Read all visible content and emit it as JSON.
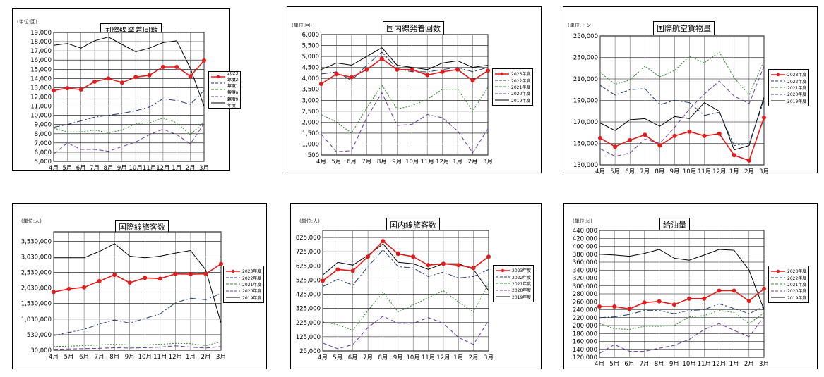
{
  "months": [
    "4月",
    "5月",
    "6月",
    "7月",
    "8月",
    "9月",
    "10月",
    "11月",
    "12月",
    "1月",
    "2月",
    "3月"
  ],
  "legend_labels": [
    "2023年度",
    "2022年度",
    "2021年度",
    "2020年度",
    "2019年度"
  ],
  "series_styles": [
    {
      "name": "2023年度",
      "color": "#e31b1b",
      "dash": "",
      "marker": true,
      "width": 1.6
    },
    {
      "name": "2022年度",
      "color": "#1f3a6b",
      "dash": "9,3,2,3",
      "marker": false,
      "width": 1
    },
    {
      "name": "2021年度",
      "color": "#2e8b2e",
      "dash": "2,2",
      "marker": false,
      "width": 1
    },
    {
      "name": "2020年度",
      "color": "#6a3a9a",
      "dash": "6,3",
      "marker": false,
      "width": 1
    },
    {
      "name": "2019年度",
      "color": "#000000",
      "dash": "",
      "marker": false,
      "width": 1
    }
  ],
  "chart_data": [
    {
      "type": "line",
      "title": "国際線発着回数",
      "unit": "(単位:回)",
      "ylim": [
        5000,
        19000
      ],
      "yticks": [
        5000,
        6000,
        7000,
        8000,
        9000,
        10000,
        11000,
        12000,
        13000,
        14000,
        15000,
        16000,
        17000,
        18000,
        19000
      ],
      "ytick_labels": [
        "5,000",
        "6,000",
        "7,000",
        "8,000",
        "9,000",
        "10,000",
        "11,000",
        "12,000",
        "13,000",
        "14,000",
        "15,000",
        "16,000",
        "17,000",
        "18,000",
        "19,000"
      ],
      "categories": [
        "4月",
        "5月",
        "6月",
        "7月",
        "8月",
        "9月",
        "10月",
        "11月",
        "12月",
        "1月",
        "2月",
        "3月"
      ],
      "series": [
        {
          "name": "2023年度",
          "values": [
            12700,
            12950,
            12800,
            13650,
            14000,
            13550,
            14150,
            14350,
            15250,
            15250,
            14250,
            15950
          ]
        },
        {
          "name": "2022年度",
          "values": [
            8700,
            9000,
            9400,
            9800,
            10000,
            10200,
            10500,
            10900,
            11800,
            11600,
            11200,
            12700
          ]
        },
        {
          "name": "2021年度",
          "values": [
            8600,
            8200,
            8200,
            8400,
            8100,
            8400,
            9100,
            9200,
            9700,
            9200,
            7900,
            9300
          ]
        },
        {
          "name": "2020年度",
          "values": [
            5800,
            7000,
            6300,
            6300,
            6100,
            6600,
            7100,
            7900,
            8500,
            7900,
            6900,
            9100
          ]
        },
        {
          "name": "2019年度",
          "values": [
            17600,
            17800,
            17300,
            18100,
            18500,
            17700,
            16900,
            17300,
            17900,
            18100,
            15100,
            11000
          ]
        }
      ]
    },
    {
      "type": "line",
      "title": "国内線発着回数",
      "unit": "(単位:回)",
      "ylim": [
        500,
        6000
      ],
      "yticks": [
        500,
        1000,
        1500,
        2000,
        2500,
        3000,
        3500,
        4000,
        4500,
        5000,
        5500,
        6000
      ],
      "ytick_labels": [
        "500",
        "1,000",
        "1,500",
        "2,000",
        "2,500",
        "3,000",
        "3,500",
        "4,000",
        "4,500",
        "5,000",
        "5,500",
        "6,000"
      ],
      "categories": [
        "4月",
        "5月",
        "6月",
        "7月",
        "8月",
        "9月",
        "10月",
        "11月",
        "12月",
        "1月",
        "2月",
        "3月"
      ],
      "series": [
        {
          "name": "2023年度",
          "values": [
            3750,
            4200,
            4050,
            4400,
            4900,
            4400,
            4400,
            4150,
            4300,
            4400,
            3900,
            4350
          ]
        },
        {
          "name": "2022年度",
          "values": [
            4200,
            4300,
            3900,
            4600,
            5200,
            4450,
            4300,
            4300,
            4400,
            4500,
            4300,
            4500
          ]
        },
        {
          "name": "2021年度",
          "values": [
            2350,
            2000,
            1500,
            2650,
            3700,
            2600,
            2750,
            3050,
            3500,
            3500,
            2500,
            3600
          ]
        },
        {
          "name": "2020年度",
          "values": [
            1450,
            650,
            700,
            2200,
            3350,
            1850,
            1900,
            2350,
            2200,
            1600,
            600,
            1700
          ]
        },
        {
          "name": "2019年度",
          "values": [
            4400,
            4700,
            4600,
            5000,
            5400,
            4600,
            4500,
            4400,
            4700,
            4800,
            4500,
            4600
          ]
        }
      ]
    },
    {
      "type": "line",
      "title": "国際航空貨物量",
      "unit": "(単位:トン)",
      "ylim": [
        130000,
        250000
      ],
      "yticks": [
        130000,
        150000,
        170000,
        190000,
        210000,
        230000,
        250000
      ],
      "ytick_labels": [
        "130,000",
        "150,000",
        "170,000",
        "190,000",
        "210,000",
        "230,000",
        "250,000"
      ],
      "categories": [
        "4月",
        "5月",
        "6月",
        "7月",
        "8月",
        "9月",
        "10月",
        "11月",
        "12月",
        "1月",
        "2月",
        "3月"
      ],
      "series": [
        {
          "name": "2023年度",
          "values": [
            155000,
            147000,
            153000,
            158000,
            148000,
            157000,
            161000,
            157000,
            159000,
            139000,
            134000,
            174000
          ]
        },
        {
          "name": "2022年度",
          "values": [
            204000,
            195000,
            200000,
            201000,
            186000,
            190000,
            188000,
            176000,
            179000,
            148000,
            150000,
            190000
          ]
        },
        {
          "name": "2021年度",
          "values": [
            216000,
            205000,
            209000,
            222000,
            212000,
            218000,
            231000,
            225000,
            235000,
            211000,
            195000,
            227000
          ]
        },
        {
          "name": "2020年度",
          "values": [
            145000,
            138000,
            141000,
            154000,
            150000,
            165000,
            182000,
            196000,
            208000,
            194000,
            187000,
            222000
          ]
        },
        {
          "name": "2019年度",
          "values": [
            169000,
            162000,
            172000,
            173000,
            166000,
            175000,
            173000,
            188000,
            180000,
            144000,
            148000,
            193000
          ]
        }
      ]
    },
    {
      "type": "line",
      "title": "国際線旅客数",
      "unit": "(単位:人)",
      "ylim": [
        30000,
        3830000
      ],
      "yticks": [
        30000,
        530000,
        1030000,
        1530000,
        2030000,
        2530000,
        3030000,
        3530000
      ],
      "ytick_labels": [
        "30,000",
        "530,000",
        "1,030,000",
        "1,530,000",
        "2,030,000",
        "2,530,000",
        "3,030,000",
        "3,530,000"
      ],
      "categories": [
        "4月",
        "5月",
        "6月",
        "7月",
        "8月",
        "9月",
        "10月",
        "11月",
        "12月",
        "1月",
        "2月",
        "3月"
      ],
      "series": [
        {
          "name": "2023年度",
          "values": [
            1900000,
            2000000,
            2050000,
            2250000,
            2450000,
            2200000,
            2350000,
            2330000,
            2480000,
            2470000,
            2480000,
            2800000
          ]
        },
        {
          "name": "2022年度",
          "values": [
            500000,
            600000,
            700000,
            870000,
            1000000,
            900000,
            1050000,
            1200000,
            1550000,
            1700000,
            1650000,
            1850000
          ]
        },
        {
          "name": "2021年度",
          "values": [
            150000,
            160000,
            180000,
            200000,
            220000,
            200000,
            200000,
            220000,
            250000,
            240000,
            180000,
            300000
          ]
        },
        {
          "name": "2020年度",
          "values": [
            60000,
            70000,
            80000,
            90000,
            110000,
            100000,
            110000,
            130000,
            170000,
            130000,
            100000,
            150000
          ]
        },
        {
          "name": "2019年度",
          "values": [
            3000000,
            3000000,
            3000000,
            3200000,
            3450000,
            3050000,
            3000000,
            3050000,
            3150000,
            3230000,
            2600000,
            900000
          ]
        }
      ]
    },
    {
      "type": "line",
      "title": "国内線旅客数",
      "unit": "(単位:人)",
      "ylim": [
        25000,
        875000
      ],
      "yticks": [
        25000,
        125000,
        225000,
        325000,
        425000,
        525000,
        625000,
        725000,
        825000
      ],
      "ytick_labels": [
        "25,000",
        "125,000",
        "225,000",
        "325,000",
        "425,000",
        "525,000",
        "625,000",
        "725,000",
        "825,000"
      ],
      "categories": [
        "4月",
        "5月",
        "6月",
        "7月",
        "8月",
        "9月",
        "10月",
        "11月",
        "12月",
        "1月",
        "2月",
        "3月"
      ],
      "series": [
        {
          "name": "2023年度",
          "values": [
            520000,
            600000,
            590000,
            690000,
            800000,
            710000,
            690000,
            630000,
            640000,
            630000,
            610000,
            690000
          ]
        },
        {
          "name": "2022年度",
          "values": [
            480000,
            530000,
            490000,
            620000,
            740000,
            620000,
            610000,
            550000,
            580000,
            540000,
            550000,
            600000
          ]
        },
        {
          "name": "2021年度",
          "values": [
            230000,
            210000,
            170000,
            310000,
            440000,
            300000,
            350000,
            400000,
            450000,
            370000,
            300000,
            500000
          ]
        },
        {
          "name": "2020年度",
          "values": [
            80000,
            40000,
            70000,
            190000,
            270000,
            220000,
            220000,
            260000,
            220000,
            120000,
            70000,
            240000
          ]
        },
        {
          "name": "2019年度",
          "values": [
            560000,
            650000,
            630000,
            700000,
            780000,
            650000,
            640000,
            600000,
            640000,
            640000,
            600000,
            450000
          ]
        }
      ]
    },
    {
      "type": "line",
      "title": "給油量",
      "unit": "(単位:kl)",
      "ylim": [
        120000,
        440000
      ],
      "yticks": [
        120000,
        140000,
        160000,
        180000,
        200000,
        220000,
        240000,
        260000,
        280000,
        300000,
        320000,
        340000,
        360000,
        380000,
        400000,
        420000,
        440000
      ],
      "ytick_labels": [
        "120,000",
        "140,000",
        "160,000",
        "180,000",
        "200,000",
        "220,000",
        "240,000",
        "260,000",
        "280,000",
        "300,000",
        "320,000",
        "340,000",
        "360,000",
        "380,000",
        "400,000",
        "420,000",
        "440,000"
      ],
      "categories": [
        "4月",
        "5月",
        "6月",
        "7月",
        "8月",
        "9月",
        "10月",
        "11月",
        "12月",
        "1月",
        "2月",
        "3月"
      ],
      "series": [
        {
          "name": "2023年度",
          "values": [
            248000,
            248000,
            242000,
            258000,
            261000,
            253000,
            268000,
            268000,
            288000,
            288000,
            262000,
            293000
          ]
        },
        {
          "name": "2022年度",
          "values": [
            220000,
            222000,
            228000,
            238000,
            238000,
            230000,
            238000,
            240000,
            255000,
            243000,
            230000,
            248000
          ]
        },
        {
          "name": "2021年度",
          "values": [
            205000,
            192000,
            190000,
            198000,
            198000,
            200000,
            222000,
            225000,
            238000,
            233000,
            205000,
            232000
          ]
        },
        {
          "name": "2020年度",
          "values": [
            130000,
            152000,
            135000,
            135000,
            143000,
            150000,
            165000,
            190000,
            205000,
            188000,
            172000,
            222000
          ]
        },
        {
          "name": "2019年度",
          "values": [
            380000,
            378000,
            375000,
            382000,
            392000,
            370000,
            365000,
            378000,
            392000,
            390000,
            340000,
            240000
          ]
        }
      ]
    }
  ]
}
